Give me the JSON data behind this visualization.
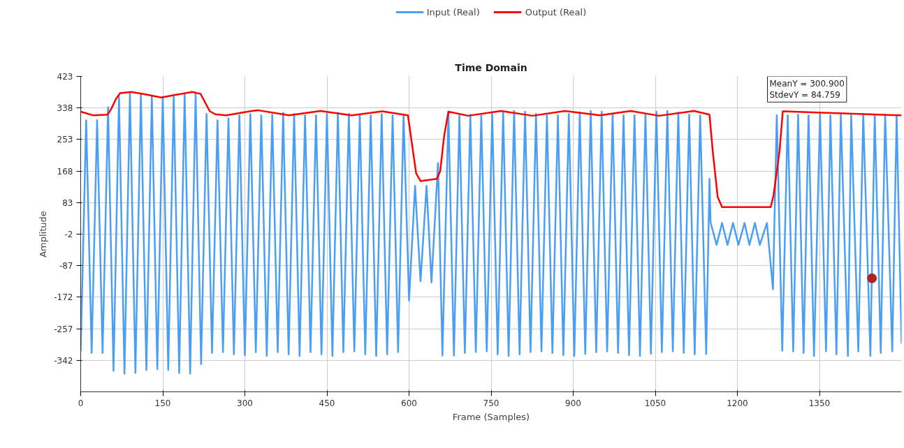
{
  "chart_data": {
    "type": "line",
    "title": "Time Domain",
    "xlabel": "Frame (Samples)",
    "ylabel": "Amplitude",
    "xlim": [
      0,
      1500
    ],
    "xticks": [
      0,
      150,
      300,
      450,
      600,
      750,
      900,
      1050,
      1200,
      1350
    ],
    "ylim": [
      -427,
      423
    ],
    "yticks": [
      423,
      338,
      253,
      168,
      83,
      -2,
      -87,
      -172,
      -257,
      -342
    ],
    "grid": true,
    "legend": "top",
    "marker": "none",
    "line_style": "solid",
    "annotations": [
      "MeanY = 300.900",
      "StdevY = 84.759"
    ],
    "series": [
      {
        "name": "Input (Real)",
        "color": "#4a9ff5",
        "x": [
          0,
          10,
          20,
          30,
          40,
          50,
          60,
          70,
          80,
          90,
          100,
          110,
          120,
          130,
          140,
          150,
          160,
          170,
          180,
          190,
          200,
          210,
          220,
          230,
          240,
          250,
          260,
          270,
          280,
          290,
          300,
          310,
          320,
          330,
          340,
          350,
          360,
          370,
          380,
          390,
          400,
          410,
          420,
          430,
          440,
          450,
          460,
          470,
          480,
          490,
          500,
          510,
          520,
          530,
          540,
          550,
          560,
          570,
          580,
          590,
          600,
          611,
          621,
          632,
          641,
          653,
          661,
          672,
          682,
          692,
          702,
          712,
          722,
          732,
          742,
          752,
          762,
          772,
          782,
          792,
          802,
          812,
          822,
          832,
          842,
          852,
          862,
          872,
          882,
          892,
          902,
          912,
          922,
          932,
          942,
          952,
          962,
          972,
          982,
          992,
          1002,
          1012,
          1022,
          1032,
          1042,
          1052,
          1062,
          1072,
          1082,
          1092,
          1102,
          1112,
          1122,
          1132,
          1143,
          1149,
          1151,
          1162,
          1172,
          1182,
          1192,
          1202,
          1213,
          1222,
          1232,
          1241,
          1254,
          1265,
          1272,
          1282,
          1292,
          1302,
          1311,
          1321,
          1330,
          1340,
          1351,
          1362,
          1370,
          1381,
          1389,
          1402,
          1408,
          1421,
          1430,
          1443,
          1451,
          1462,
          1470,
          1483,
          1491,
          1500
        ],
        "values": [
          -318,
          305,
          -322,
          305,
          -322,
          340,
          -370,
          368,
          -378,
          378,
          -376,
          376,
          -368,
          370,
          -366,
          368,
          -368,
          372,
          -376,
          374,
          -378,
          376,
          -352,
          322,
          -322,
          305,
          -320,
          310,
          -326,
          318,
          -328,
          322,
          -320,
          318,
          -330,
          320,
          -320,
          325,
          -326,
          322,
          -330,
          318,
          -320,
          318,
          -326,
          322,
          -330,
          325,
          -320,
          322,
          -318,
          318,
          -326,
          318,
          -330,
          322,
          -326,
          318,
          -320,
          318,
          -181,
          128,
          -129,
          128,
          -132,
          190,
          -329,
          325,
          -329,
          318,
          -322,
          320,
          -320,
          318,
          -318,
          322,
          -326,
          328,
          -330,
          330,
          -326,
          328,
          -320,
          322,
          -318,
          318,
          -322,
          318,
          -328,
          322,
          -330,
          326,
          -325,
          330,
          -320,
          328,
          -318,
          322,
          -322,
          318,
          -328,
          318,
          -330,
          322,
          -324,
          328,
          -320,
          330,
          -318,
          326,
          -322,
          320,
          -326,
          318,
          -325,
          147,
          30,
          -31,
          28,
          -31,
          28,
          -31,
          28,
          -31,
          28,
          -31,
          28,
          -151,
          318,
          -316,
          318,
          -318,
          320,
          -322,
          318,
          -330,
          322,
          -318,
          318,
          -326,
          320,
          -330,
          318,
          -318,
          322,
          -330,
          318,
          -322,
          320,
          -318,
          318,
          -297
        ]
      },
      {
        "name": "Output (Real)",
        "color": "#ff0000",
        "x": [
          0,
          23,
          49,
          55,
          64,
          72,
          92,
          117,
          147,
          176,
          204,
          219,
          236,
          246,
          266,
          309,
          323,
          381,
          438,
          495,
          551,
          598,
          604,
          613,
          621,
          651,
          657,
          664,
          672,
          708,
          768,
          826,
          885,
          949,
          1005,
          1057,
          1121,
          1149,
          1155,
          1164,
          1172,
          1261,
          1266,
          1277,
          1283,
          1500
        ],
        "values": [
          328,
          318,
          320,
          333,
          361,
          378,
          381,
          375,
          366,
          374,
          381,
          376,
          329,
          321,
          318,
          329,
          332,
          318,
          330,
          318,
          329,
          318,
          255,
          162,
          141,
          147,
          168,
          261,
          328,
          317,
          330,
          317,
          330,
          318,
          330,
          317,
          330,
          320,
          221,
          98,
          71,
          71,
          102,
          221,
          329,
          318
        ]
      },
      {
        "type": "scatter",
        "color": "#b22222",
        "marker": "circle",
        "x": [
          1446
        ],
        "values": [
          -121
        ]
      }
    ]
  }
}
